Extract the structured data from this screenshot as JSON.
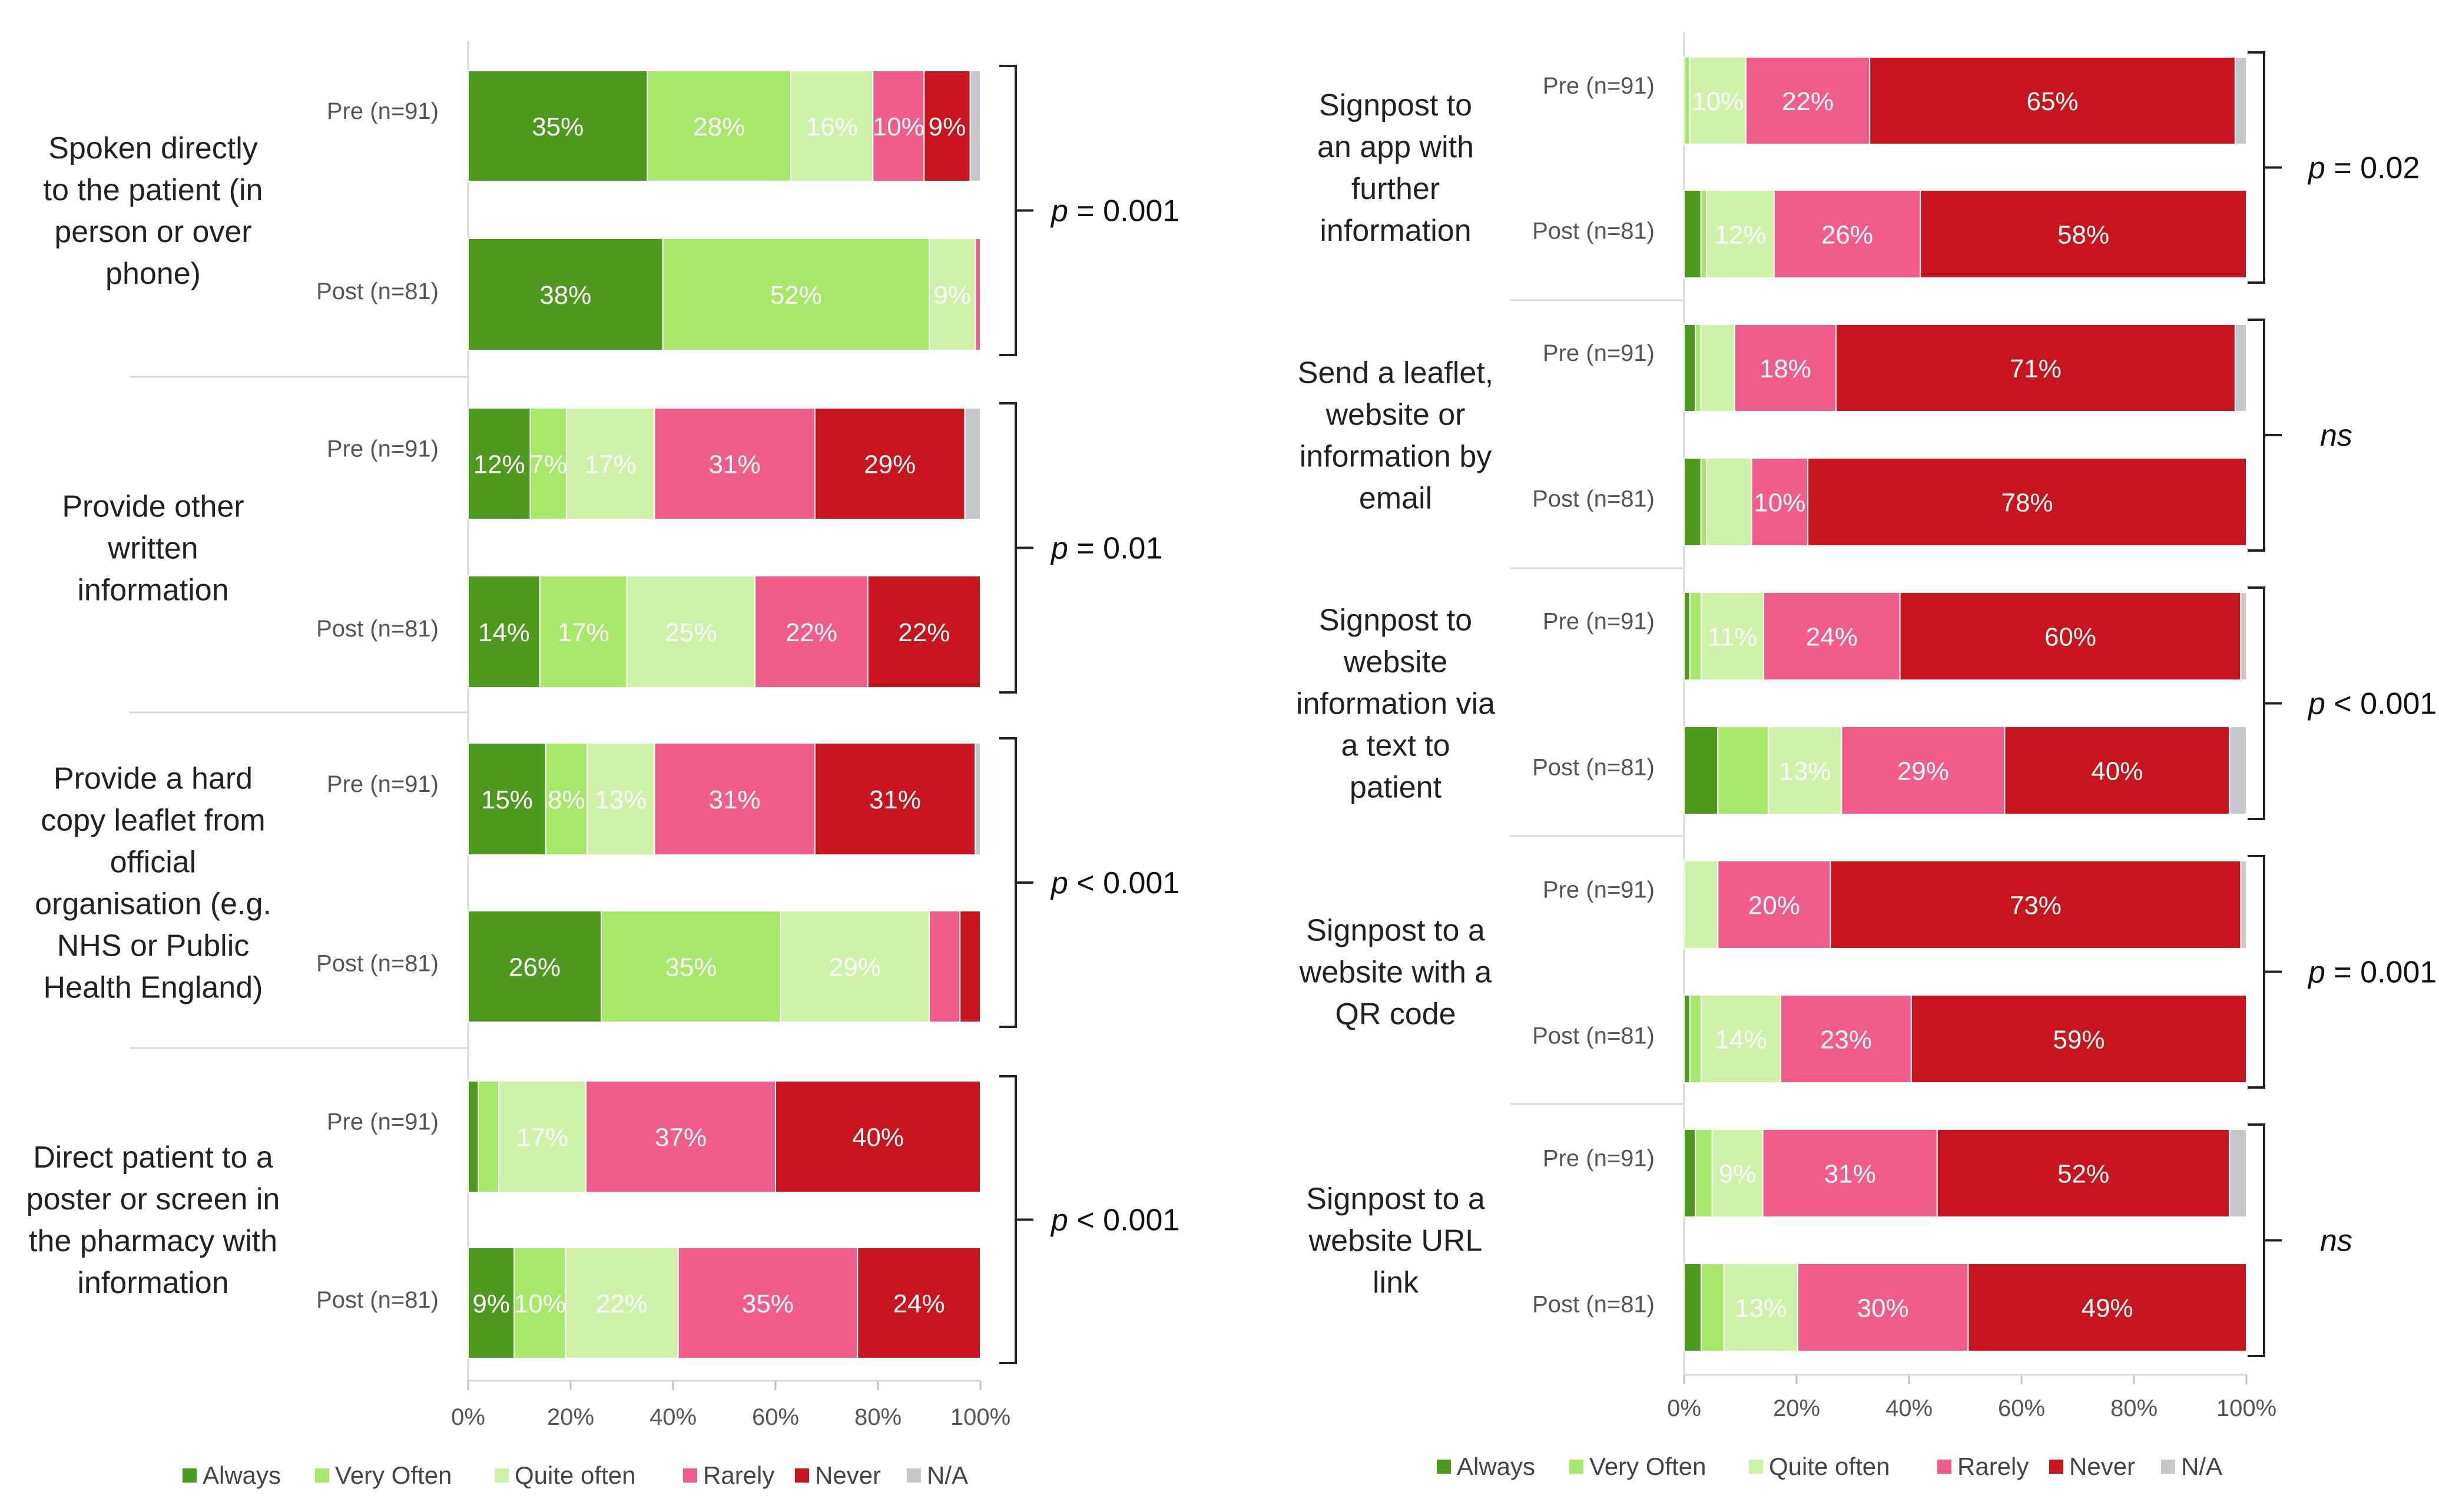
{
  "chart_data": [
    {
      "type": "bar",
      "orientation": "horizontal",
      "stacked": true,
      "xlim": [
        0,
        100
      ],
      "x_ticks": [
        "0%",
        "20%",
        "40%",
        "60%",
        "80%",
        "100%"
      ],
      "legend": {
        "placement": "bottom",
        "entries": [
          "Always",
          "Very Often",
          "Quite often",
          "Rarely",
          "Never",
          "N/A"
        ],
        "colors": [
          "#4e9a1e",
          "#a6e86a",
          "#cdf2a8",
          "#f25c8a",
          "#c8151d",
          "#c5c9cb"
        ]
      },
      "groups": [
        {
          "category_lines": [
            "Spoken directly",
            "to the patient (in",
            "person or over",
            "phone)"
          ],
          "p_value": "p = 0.001",
          "rows": [
            {
              "label": "Pre (n=91)",
              "values": [
                35,
                28,
                16,
                10,
                9,
                2
              ],
              "value_labels": [
                "35%",
                "28%",
                "16%",
                "10%",
                "9%",
                ""
              ]
            },
            {
              "label": "Post (n=81)",
              "values": [
                38,
                52,
                9,
                1,
                0,
                0
              ],
              "value_labels": [
                "38%",
                "52%",
                "9%",
                "",
                "",
                ""
              ]
            }
          ]
        },
        {
          "category_lines": [
            "Provide other",
            "written",
            "information"
          ],
          "p_value": "p = 0.01",
          "rows": [
            {
              "label": "Pre (n=91)",
              "values": [
                12,
                7,
                17,
                31,
                29,
                3
              ],
              "value_labels": [
                "12%",
                "7%",
                "17%",
                "31%",
                "29%",
                ""
              ]
            },
            {
              "label": "Post (n=81)",
              "values": [
                14,
                17,
                25,
                22,
                22,
                0
              ],
              "value_labels": [
                "14%",
                "17%",
                "25%",
                "22%",
                "22%",
                ""
              ]
            }
          ]
        },
        {
          "category_lines": [
            "Provide a hard",
            "copy leaflet from",
            "official",
            "organisation (e.g.",
            "NHS or Public",
            "Health England)"
          ],
          "p_value": "p < 0.001",
          "rows": [
            {
              "label": "Pre (n=91)",
              "values": [
                15,
                8,
                13,
                31,
                31,
                1
              ],
              "value_labels": [
                "15%",
                "8%",
                "13%",
                "31%",
                "31%",
                ""
              ]
            },
            {
              "label": "Post (n=81)",
              "values": [
                26,
                35,
                29,
                6,
                4,
                0
              ],
              "value_labels": [
                "26%",
                "35%",
                "29%",
                "",
                "",
                ""
              ]
            }
          ]
        },
        {
          "category_lines": [
            "Direct patient to a",
            "poster or screen in",
            "the pharmacy with",
            "information"
          ],
          "p_value": "p < 0.001",
          "rows": [
            {
              "label": "Pre (n=91)",
              "values": [
                2,
                4,
                17,
                37,
                40,
                0
              ],
              "value_labels": [
                "",
                "",
                "17%",
                "37%",
                "40%",
                ""
              ]
            },
            {
              "label": "Post (n=81)",
              "values": [
                9,
                10,
                22,
                35,
                24,
                0
              ],
              "value_labels": [
                "9%",
                "10%",
                "22%",
                "35%",
                "24%",
                ""
              ]
            }
          ]
        }
      ]
    },
    {
      "type": "bar",
      "orientation": "horizontal",
      "stacked": true,
      "xlim": [
        0,
        100
      ],
      "x_ticks": [
        "0%",
        "20%",
        "40%",
        "60%",
        "80%",
        "100%"
      ],
      "legend": {
        "placement": "bottom",
        "entries": [
          "Always",
          "Very Often",
          "Quite often",
          "Rarely",
          "Never",
          "N/A"
        ],
        "colors": [
          "#4e9a1e",
          "#a6e86a",
          "#cdf2a8",
          "#f25c8a",
          "#c8151d",
          "#c5c9cb"
        ]
      },
      "groups": [
        {
          "category_lines": [
            "Signpost to",
            "an app with",
            "further",
            "information"
          ],
          "p_value": "p = 0.02",
          "rows": [
            {
              "label": "Pre (n=91)",
              "values": [
                0,
                1,
                10,
                22,
                65,
                2
              ],
              "value_labels": [
                "",
                "",
                "10%",
                "22%",
                "65%",
                ""
              ]
            },
            {
              "label": "Post (n=81)",
              "values": [
                3,
                1,
                12,
                26,
                58,
                0
              ],
              "value_labels": [
                "",
                "",
                "12%",
                "26%",
                "58%",
                ""
              ]
            }
          ]
        },
        {
          "category_lines": [
            "Send a leaflet,",
            "website or",
            "information by",
            "email"
          ],
          "p_value": "ns",
          "rows": [
            {
              "label": "Pre (n=91)",
              "values": [
                2,
                1,
                6,
                18,
                71,
                2
              ],
              "value_labels": [
                "",
                "",
                "",
                "18%",
                "71%",
                ""
              ]
            },
            {
              "label": "Post (n=81)",
              "values": [
                3,
                1,
                8,
                10,
                78,
                0
              ],
              "value_labels": [
                "",
                "",
                "",
                "10%",
                "78%",
                ""
              ]
            }
          ]
        },
        {
          "category_lines": [
            "Signpost to",
            "website",
            "information via",
            "a text to",
            "patient"
          ],
          "p_value": "p < 0.001",
          "rows": [
            {
              "label": "Pre (n=91)",
              "values": [
                1,
                2,
                11,
                24,
                60,
                1
              ],
              "value_labels": [
                "",
                "",
                "11%",
                "24%",
                "60%",
                ""
              ]
            },
            {
              "label": "Post (n=81)",
              "values": [
                6,
                9,
                13,
                29,
                40,
                3
              ],
              "value_labels": [
                "",
                "",
                "13%",
                "29%",
                "40%",
                ""
              ]
            }
          ]
        },
        {
          "category_lines": [
            "Signpost to a",
            "website with a",
            "QR code"
          ],
          "p_value": "p = 0.001",
          "rows": [
            {
              "label": "Pre (n=91)",
              "values": [
                0,
                0,
                6,
                20,
                73,
                1
              ],
              "value_labels": [
                "",
                "",
                "",
                "20%",
                "73%",
                ""
              ]
            },
            {
              "label": "Post (n=81)",
              "values": [
                1,
                2,
                14,
                23,
                59,
                0
              ],
              "value_labels": [
                "",
                "",
                "14%",
                "23%",
                "59%",
                ""
              ]
            }
          ]
        },
        {
          "category_lines": [
            "Signpost to a",
            "website URL",
            "link"
          ],
          "p_value": "ns",
          "rows": [
            {
              "label": "Pre (n=91)",
              "values": [
                2,
                3,
                9,
                31,
                52,
                3
              ],
              "value_labels": [
                "",
                "",
                "9%",
                "31%",
                "52%",
                ""
              ]
            },
            {
              "label": "Post (n=81)",
              "values": [
                3,
                4,
                13,
                30,
                49,
                0
              ],
              "value_labels": [
                "",
                "",
                "13%",
                "30%",
                "49%",
                ""
              ]
            }
          ]
        }
      ]
    }
  ]
}
